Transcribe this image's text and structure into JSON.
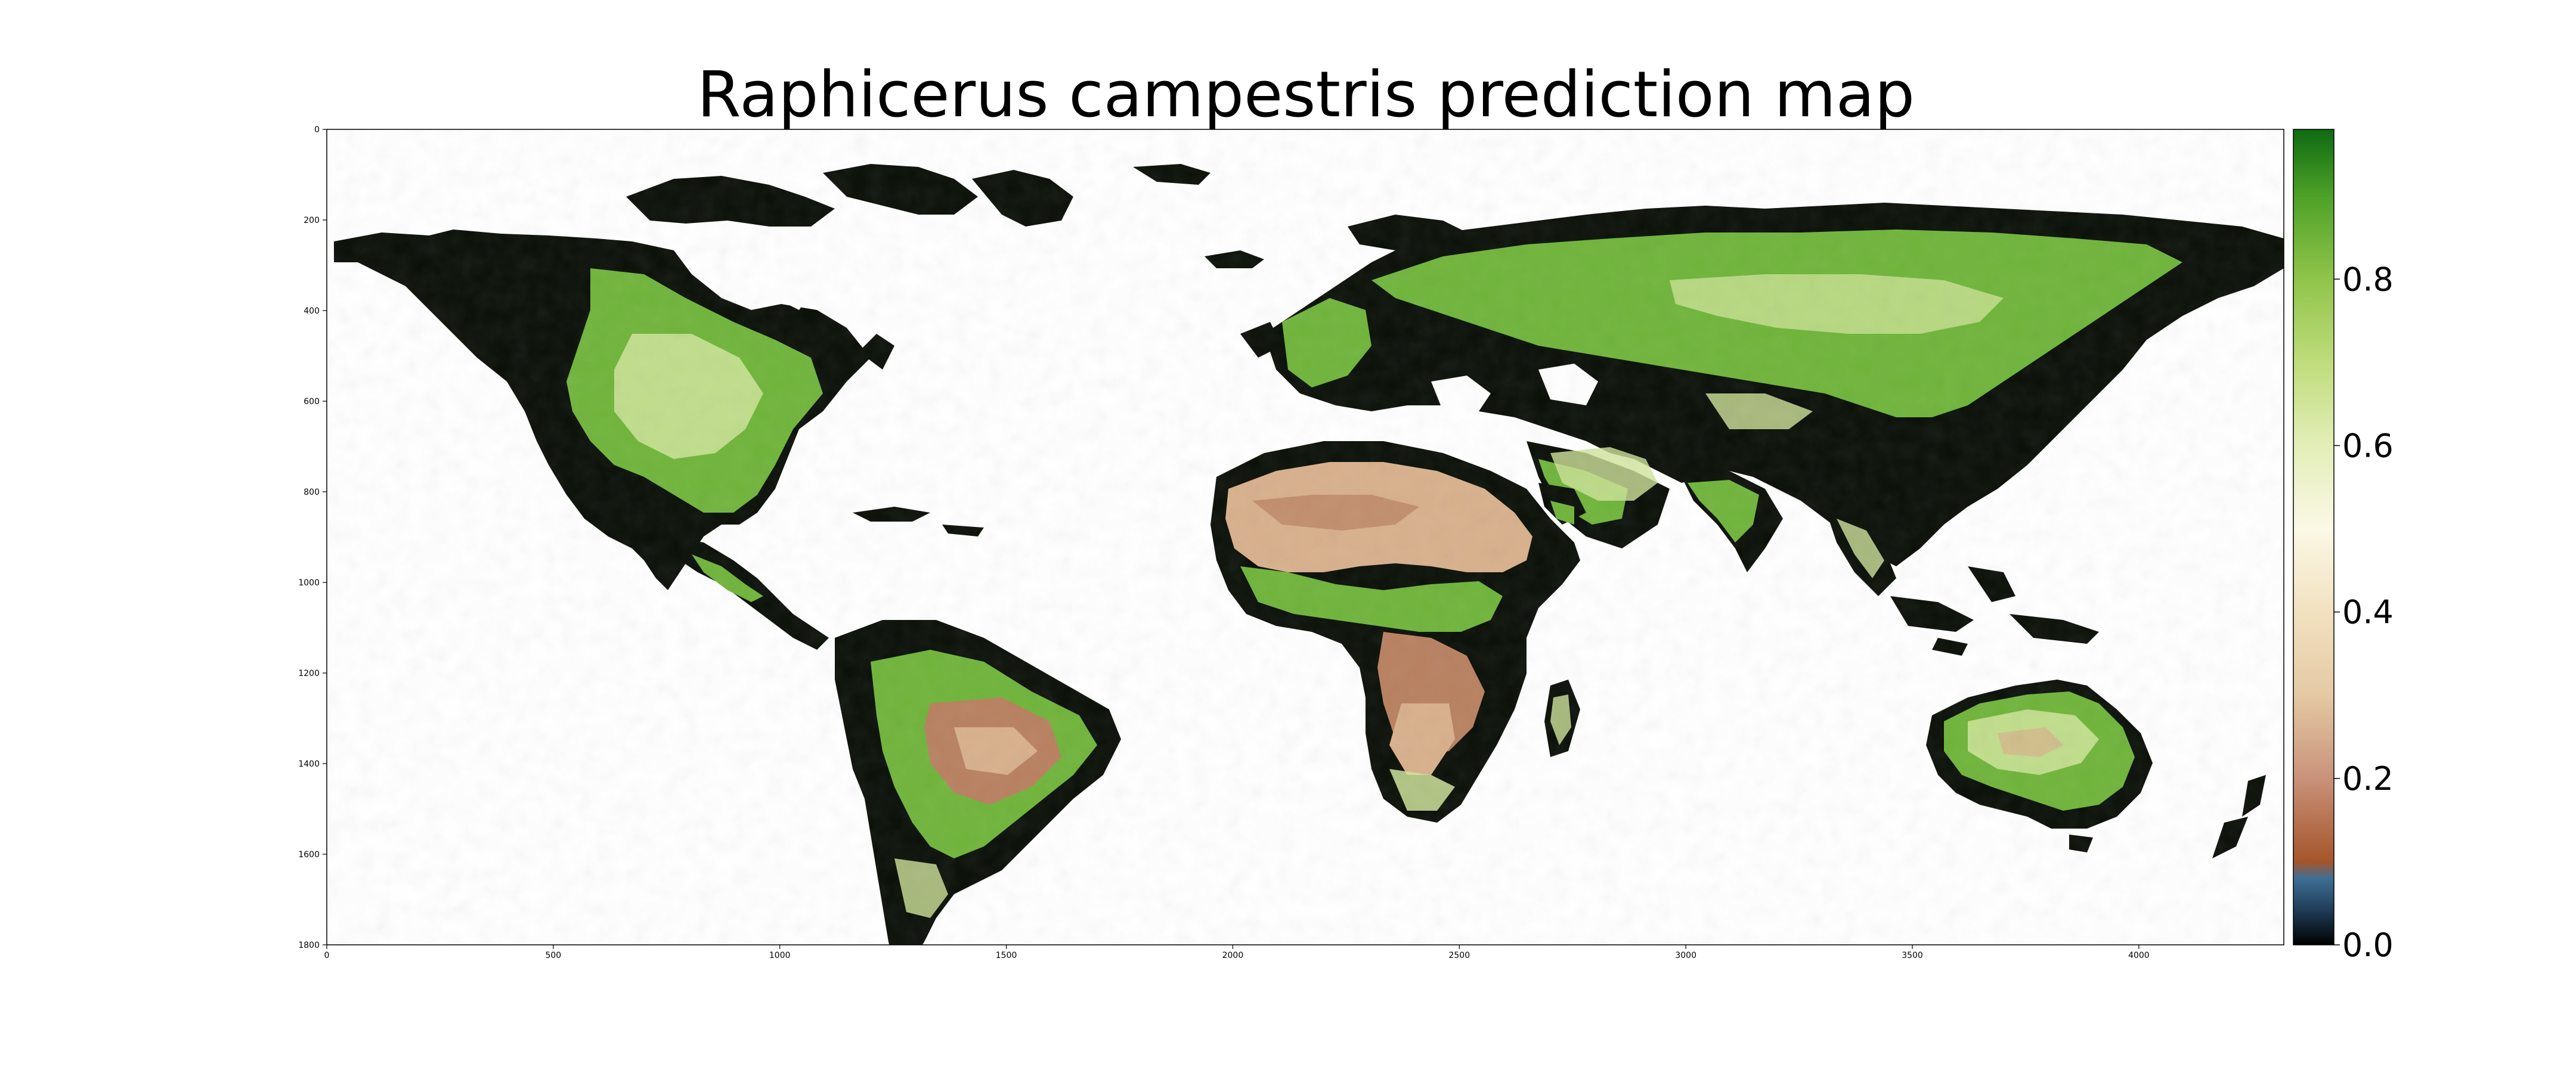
{
  "title": "Raphicerus campestris prediction map",
  "image_axes": {
    "x_ticks": [
      0,
      500,
      1000,
      1500,
      2000,
      2500,
      3000,
      3500,
      4000
    ],
    "y_ticks": [
      0,
      200,
      400,
      600,
      800,
      1000,
      1200,
      1400,
      1600,
      1800
    ],
    "xlim": [
      0,
      4320
    ],
    "ylim": [
      1800,
      0
    ]
  },
  "colorbar": {
    "ticks": [
      "0.0",
      "0.2",
      "0.4",
      "0.6",
      "0.8"
    ],
    "range": [
      0,
      0.98
    ],
    "stops": [
      {
        "v": 0.0,
        "color": "#000000"
      },
      {
        "v": 0.04,
        "color": "#1e3a55"
      },
      {
        "v": 0.08,
        "color": "#3f6f95"
      },
      {
        "v": 0.1,
        "color": "#a5552b"
      },
      {
        "v": 0.2,
        "color": "#c9927a"
      },
      {
        "v": 0.3,
        "color": "#e5c9a4"
      },
      {
        "v": 0.4,
        "color": "#f2e1c0"
      },
      {
        "v": 0.5,
        "color": "#fbf8e6"
      },
      {
        "v": 0.6,
        "color": "#e3eeb8"
      },
      {
        "v": 0.7,
        "color": "#bfdc7c"
      },
      {
        "v": 0.8,
        "color": "#90c44a"
      },
      {
        "v": 0.9,
        "color": "#4ea128"
      },
      {
        "v": 0.98,
        "color": "#0f6a12"
      }
    ]
  },
  "colors": {
    "land_dark": "#0a0f08",
    "land_green": "#6fb43a",
    "land_light": "#cfe49a",
    "land_tan": "#d8b08c",
    "land_brown": "#b88060",
    "ocean": "#ffffff"
  }
}
